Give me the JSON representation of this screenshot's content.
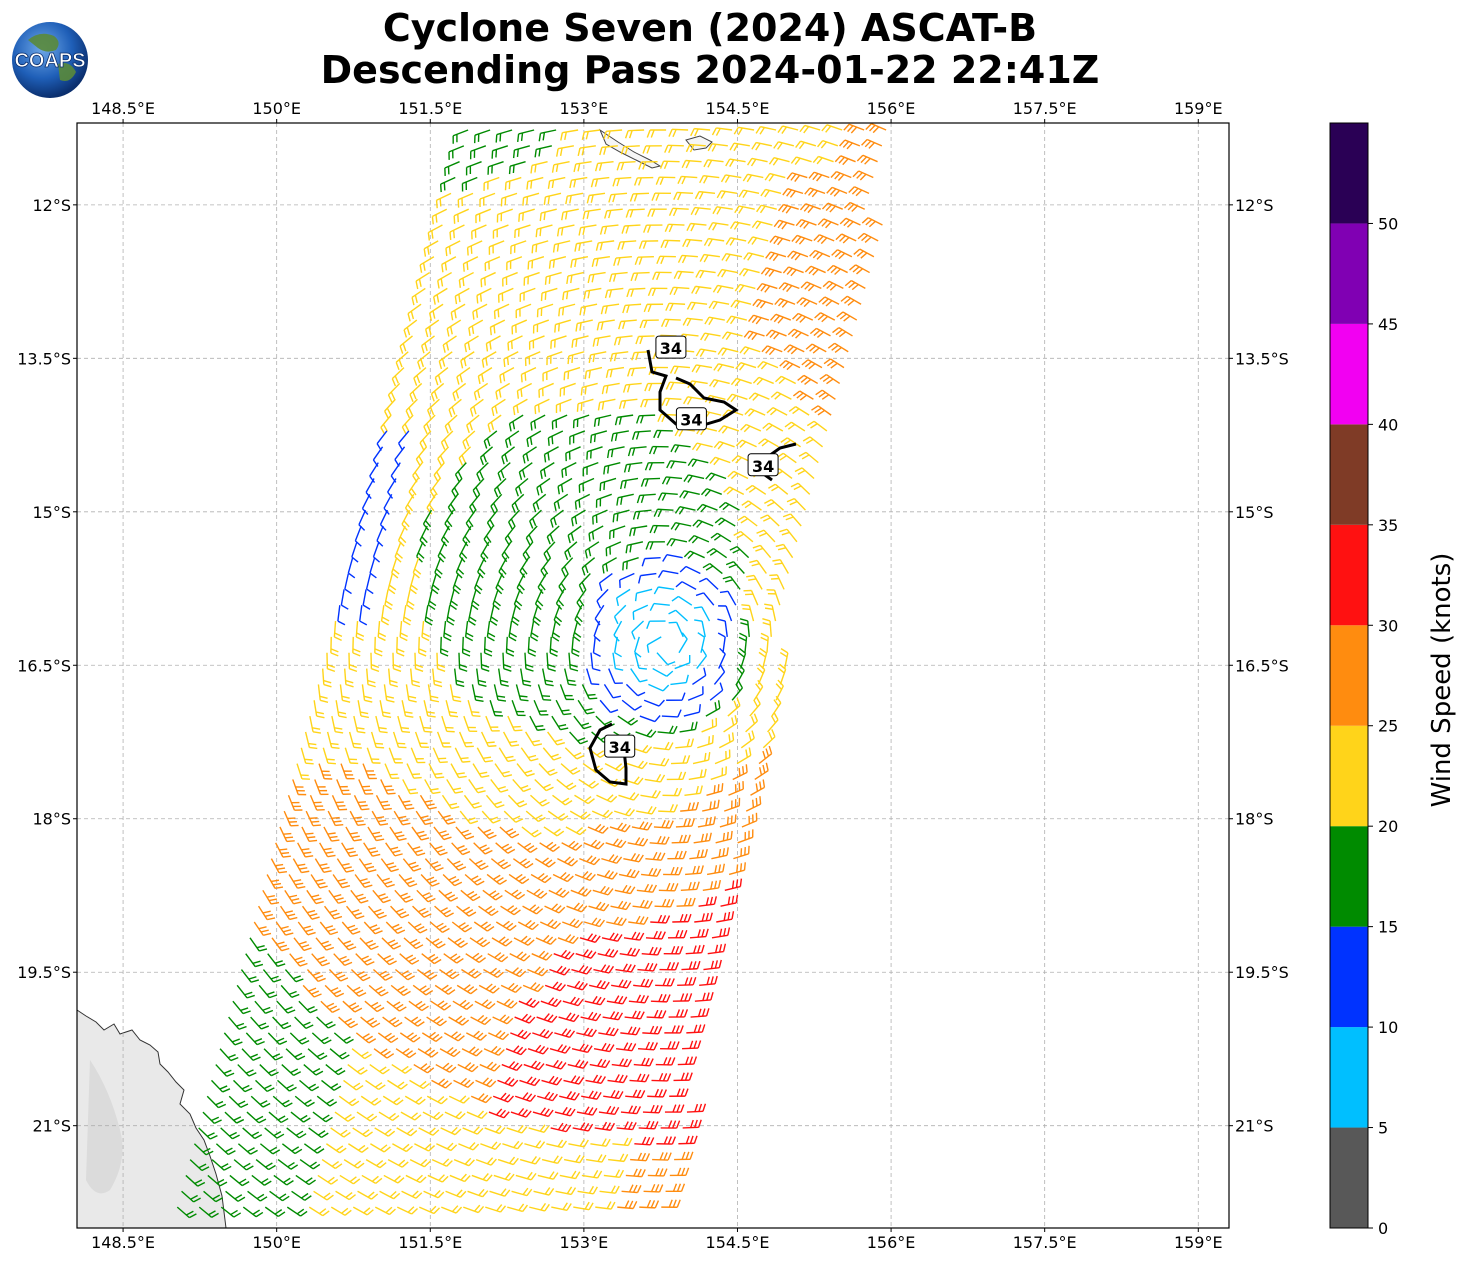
{
  "title": {
    "line1": "Cyclone Seven (2024) ASCAT-B",
    "line2": "Descending Pass 2024-01-22 22:41Z"
  },
  "logo": {
    "text": "COAPS",
    "icon": "globe-icon"
  },
  "axes": {
    "lon_labels": [
      "148.5°E",
      "150°E",
      "151.5°E",
      "153°E",
      "154.5°E",
      "156°E",
      "157.5°E",
      "159°E"
    ],
    "lat_labels": [
      "12°S",
      "13.5°S",
      "15°S",
      "16.5°S",
      "18°S",
      "19.5°S",
      "21°S"
    ],
    "lon_range": [
      148.05,
      159.3
    ],
    "lat_range": [
      -11.2,
      -22.0
    ]
  },
  "colorbar": {
    "label": "Wind Speed (knots)",
    "tick_labels": [
      "0",
      "5",
      "10",
      "15",
      "20",
      "25",
      "30",
      "35",
      "40",
      "45",
      "50"
    ],
    "bins": [
      {
        "min": 0,
        "max": 5,
        "color": "#585858"
      },
      {
        "min": 5,
        "max": 10,
        "color": "#00bfff"
      },
      {
        "min": 10,
        "max": 15,
        "color": "#0033ff"
      },
      {
        "min": 15,
        "max": 20,
        "color": "#008b00"
      },
      {
        "min": 20,
        "max": 25,
        "color": "#ffd41a"
      },
      {
        "min": 25,
        "max": 30,
        "color": "#ff8c0f"
      },
      {
        "min": 30,
        "max": 35,
        "color": "#ff1111"
      },
      {
        "min": 35,
        "max": 40,
        "color": "#7f3b26"
      },
      {
        "min": 40,
        "max": 45,
        "color": "#f200f2"
      },
      {
        "min": 45,
        "max": 50,
        "color": "#8000b3"
      },
      {
        "min": 50,
        "max": 55,
        "color": "#2a0055"
      }
    ]
  },
  "cyclone_center": {
    "lon": 153.8,
    "lat": -16.3
  },
  "contours": [
    {
      "label": "34",
      "label_lon": 153.85,
      "label_lat": -13.4
    },
    {
      "label": "34",
      "label_lon": 154.05,
      "label_lat": -14.1
    },
    {
      "label": "34",
      "label_lon": 154.75,
      "label_lat": -14.55
    },
    {
      "label": "34",
      "label_lon": 153.35,
      "label_lat": -17.3
    }
  ]
}
